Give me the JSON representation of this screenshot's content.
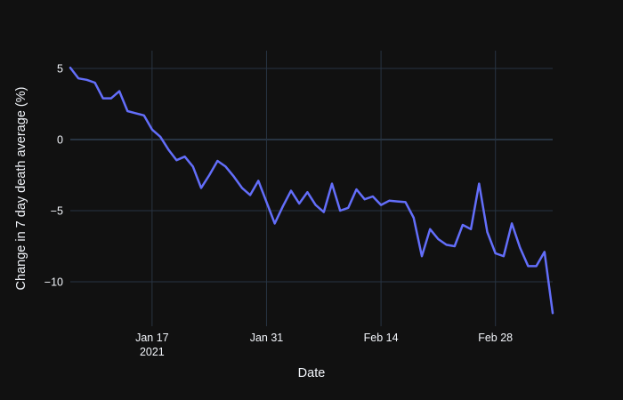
{
  "figure": {
    "bg_color": "#111111",
    "text_color": "#f2f5fa",
    "grid_color": "#283442",
    "line_color": "#636efa"
  },
  "chart_data": {
    "type": "line",
    "title": "",
    "xlabel": "Date",
    "ylabel": "Change in 7 day death average (%)",
    "legend": "none",
    "grid": true,
    "ylim": [
      -13.125,
      6.25
    ],
    "x_range": [
      "Jan 7 2021",
      "Mar 7 2021"
    ],
    "y_ticks": [
      {
        "value": 5,
        "label": "5"
      },
      {
        "value": 0,
        "label": "0"
      },
      {
        "value": -5,
        "label": "−5"
      },
      {
        "value": -10,
        "label": "−10"
      }
    ],
    "x_ticks": [
      {
        "index": 10,
        "label": "Jan 17",
        "year": "2021"
      },
      {
        "index": 24,
        "label": "Jan 31"
      },
      {
        "index": 38,
        "label": "Feb 14"
      },
      {
        "index": 52,
        "label": "Feb 28"
      }
    ],
    "x": [
      "Jan 7",
      "Jan 8",
      "Jan 9",
      "Jan 10",
      "Jan 11",
      "Jan 12",
      "Jan 13",
      "Jan 14",
      "Jan 15",
      "Jan 16",
      "Jan 17",
      "Jan 18",
      "Jan 19",
      "Jan 20",
      "Jan 21",
      "Jan 22",
      "Jan 23",
      "Jan 24",
      "Jan 25",
      "Jan 26",
      "Jan 27",
      "Jan 28",
      "Jan 29",
      "Jan 30",
      "Jan 31",
      "Feb 1",
      "Feb 2",
      "Feb 3",
      "Feb 4",
      "Feb 5",
      "Feb 6",
      "Feb 7",
      "Feb 8",
      "Feb 9",
      "Feb 10",
      "Feb 11",
      "Feb 12",
      "Feb 13",
      "Feb 14",
      "Feb 15",
      "Feb 16",
      "Feb 17",
      "Feb 18",
      "Feb 19",
      "Feb 20",
      "Feb 21",
      "Feb 22",
      "Feb 23",
      "Feb 24",
      "Feb 25",
      "Feb 26",
      "Feb 27",
      "Feb 28",
      "Mar 1",
      "Mar 2",
      "Mar 3",
      "Mar 4",
      "Mar 5",
      "Mar 6",
      "Mar 7"
    ],
    "values": [
      5.05,
      4.3,
      4.2,
      4.0,
      2.9,
      2.9,
      3.4,
      2.0,
      1.85,
      1.7,
      0.7,
      0.2,
      -0.7,
      -1.45,
      -1.2,
      -1.9,
      -3.4,
      -2.5,
      -1.5,
      -1.9,
      -2.6,
      -3.4,
      -3.9,
      -2.9,
      -4.4,
      -5.9,
      -4.7,
      -3.6,
      -4.5,
      -3.7,
      -4.6,
      -5.1,
      -3.1,
      -5.0,
      -4.8,
      -3.5,
      -4.2,
      -4.0,
      -4.6,
      -4.3,
      -4.35,
      -4.4,
      -5.5,
      -8.2,
      -6.3,
      -7.0,
      -7.4,
      -7.5,
      -6.0,
      -6.3,
      -3.1,
      -6.5,
      -8.0,
      -8.2,
      -5.9,
      -7.6,
      -8.9,
      -8.9,
      -7.9,
      -12.2
    ]
  }
}
